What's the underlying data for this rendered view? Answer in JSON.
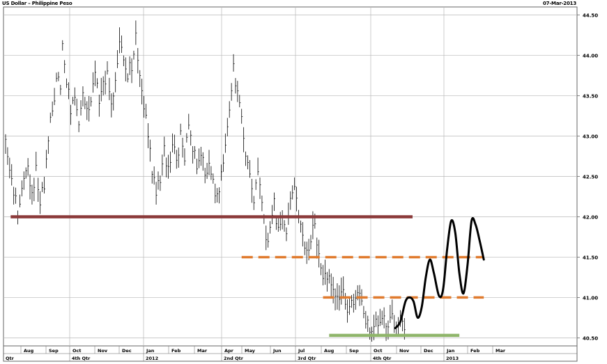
{
  "header": {
    "title": "US Dollar – Philippine Peso",
    "date": "07-Mar-2013"
  },
  "chart_data": {
    "type": "ohlc",
    "ylim": [
      40.4,
      44.6
    ],
    "y_ticks": [
      "40.50",
      "41.00",
      "41.50",
      "42.00",
      "42.50",
      "43.00",
      "43.50",
      "44.00",
      "44.50"
    ],
    "month_labels": [
      "Aug",
      "Sep",
      "Oct",
      "Nov",
      "Dec",
      "Jan",
      "Feb",
      "Mar",
      "Apr",
      "May",
      "Jun",
      "Jul",
      "Aug",
      "Sep",
      "Oct",
      "Nov",
      "Dec",
      "Jan",
      "Feb",
      "Mar"
    ],
    "period_labels": [
      "Qtr",
      "4th Qtr",
      "2012",
      "2nd Qtr",
      "3rd Qtr",
      "4th Qtr",
      "2013"
    ],
    "price_path": [
      [
        0,
        43.05
      ],
      [
        4,
        42.6
      ],
      [
        8,
        42.3
      ],
      [
        12,
        42.05
      ],
      [
        14,
        42.1
      ],
      [
        18,
        42.45
      ],
      [
        22,
        42.6
      ],
      [
        26,
        42.3
      ],
      [
        30,
        42.55
      ],
      [
        34,
        42.2
      ],
      [
        38,
        42.35
      ],
      [
        40,
        42.7
      ],
      [
        44,
        43.2
      ],
      [
        48,
        43.5
      ],
      [
        50,
        43.75
      ],
      [
        54,
        43.6
      ],
      [
        56,
        44.15
      ],
      [
        60,
        43.7
      ],
      [
        64,
        43.35
      ],
      [
        68,
        43.5
      ],
      [
        72,
        43.2
      ],
      [
        76,
        43.6
      ],
      [
        80,
        43.3
      ],
      [
        84,
        43.5
      ],
      [
        88,
        43.8
      ],
      [
        92,
        43.4
      ],
      [
        96,
        43.6
      ],
      [
        100,
        43.85
      ],
      [
        104,
        43.4
      ],
      [
        108,
        43.65
      ],
      [
        112,
        44.25
      ],
      [
        116,
        43.95
      ],
      [
        120,
        43.75
      ],
      [
        124,
        43.9
      ],
      [
        128,
        44.2
      ],
      [
        132,
        43.7
      ],
      [
        136,
        43.4
      ],
      [
        140,
        43.0
      ],
      [
        144,
        42.6
      ],
      [
        148,
        42.25
      ],
      [
        152,
        42.5
      ],
      [
        156,
        42.8
      ],
      [
        160,
        42.55
      ],
      [
        164,
        42.95
      ],
      [
        168,
        42.7
      ],
      [
        172,
        43.0
      ],
      [
        176,
        42.75
      ],
      [
        180,
        43.05
      ],
      [
        184,
        42.9
      ],
      [
        188,
        42.6
      ],
      [
        192,
        42.75
      ],
      [
        196,
        42.55
      ],
      [
        200,
        42.65
      ],
      [
        204,
        42.4
      ],
      [
        208,
        42.2
      ],
      [
        212,
        42.5
      ],
      [
        216,
        42.8
      ],
      [
        220,
        43.3
      ],
      [
        224,
        43.9
      ],
      [
        228,
        43.5
      ],
      [
        232,
        43.2
      ],
      [
        236,
        42.8
      ],
      [
        240,
        42.5
      ],
      [
        244,
        42.2
      ],
      [
        248,
        42.55
      ],
      [
        252,
        42.15
      ],
      [
        256,
        41.65
      ],
      [
        260,
        41.85
      ],
      [
        264,
        42.15
      ],
      [
        268,
        41.85
      ],
      [
        272,
        42.0
      ],
      [
        276,
        41.8
      ],
      [
        280,
        42.25
      ],
      [
        284,
        42.4
      ],
      [
        288,
        42.05
      ],
      [
        292,
        41.7
      ],
      [
        296,
        41.5
      ],
      [
        300,
        41.75
      ],
      [
        304,
        41.9
      ],
      [
        308,
        41.5
      ],
      [
        312,
        41.25
      ],
      [
        316,
        41.3
      ],
      [
        320,
        41.1
      ],
      [
        324,
        41.0
      ],
      [
        328,
        40.95
      ],
      [
        332,
        41.05
      ],
      [
        336,
        40.85
      ],
      [
        340,
        40.9
      ],
      [
        344,
        41.0
      ],
      [
        348,
        41.1
      ],
      [
        352,
        40.75
      ],
      [
        356,
        40.65
      ],
      [
        360,
        40.6
      ],
      [
        364,
        40.68
      ],
      [
        368,
        40.62
      ],
      [
        372,
        40.7
      ],
      [
        376,
        40.65
      ],
      [
        380,
        40.72
      ],
      [
        384,
        40.7
      ],
      [
        388,
        40.75
      ],
      [
        392,
        40.65
      ]
    ],
    "support_line": {
      "value": 42.0,
      "color": "#8b3a3a",
      "from_index": 5,
      "to_index": 400
    },
    "resistance_lines": [
      {
        "value": 41.5,
        "color": "#e07b2e",
        "from_index": 232,
        "to_index": 470
      },
      {
        "value": 41.0,
        "color": "#e07b2e",
        "from_index": 312,
        "to_index": 470
      }
    ],
    "floor_line": {
      "value": 40.53,
      "color": "#8fb56a",
      "from_index": 318,
      "to_index": 446
    },
    "projection_curve": [
      [
        383,
        40.62
      ],
      [
        388,
        40.7
      ],
      [
        393,
        40.95
      ],
      [
        397,
        41.0
      ],
      [
        401,
        40.95
      ],
      [
        405,
        40.75
      ],
      [
        409,
        40.88
      ],
      [
        413,
        41.25
      ],
      [
        417,
        41.47
      ],
      [
        421,
        41.3
      ],
      [
        426,
        41.02
      ],
      [
        430,
        41.1
      ],
      [
        434,
        41.6
      ],
      [
        438,
        41.95
      ],
      [
        442,
        41.8
      ],
      [
        446,
        41.3
      ],
      [
        450,
        41.05
      ],
      [
        454,
        41.4
      ],
      [
        458,
        41.95
      ],
      [
        462,
        41.9
      ],
      [
        466,
        41.7
      ],
      [
        470,
        41.47
      ]
    ],
    "colors": {
      "bars": "#000000",
      "grid": "#b8b8b8",
      "projection": "#000000"
    }
  }
}
